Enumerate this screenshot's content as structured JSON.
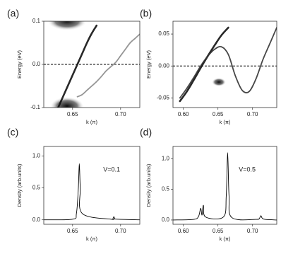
{
  "chart_data": [
    {
      "type": "line",
      "panel_label": "(a)",
      "xlabel": "k (π)",
      "ylabel": "Energy (eV)",
      "x": [
        0.62,
        0.625,
        0.63,
        0.635,
        0.64,
        0.645,
        0.65,
        0.655,
        0.66,
        0.665,
        0.67,
        0.675,
        0.68,
        0.685,
        0.69,
        0.695,
        0.7,
        0.705,
        0.71,
        0.715,
        0.72
      ],
      "series": [
        {
          "color": "#111111",
          "values": [
            null,
            null,
            null,
            -0.1,
            -0.075,
            -0.05,
            -0.025,
            0,
            0.025,
            0.05,
            0.072,
            0.09,
            null,
            null,
            null,
            null,
            null,
            null,
            null,
            null,
            null
          ]
        },
        {
          "color": "#8a8a8a",
          "values": [
            null,
            null,
            null,
            null,
            null,
            null,
            null,
            -0.075,
            -0.07,
            -0.06,
            -0.05,
            -0.04,
            -0.028,
            -0.015,
            -0.005,
            0.005,
            0.02,
            0.035,
            0.05,
            0.06,
            0.07
          ]
        }
      ],
      "reference_line": 0,
      "xlim": [
        0.62,
        0.72
      ],
      "xticks": [
        0.65,
        {
          "value": 0.7,
          "label": "0.70"
        }
      ],
      "ylim": [
        -0.1,
        0.1
      ],
      "yticks": [
        -0.1,
        {
          "value": 0,
          "label": "0.0"
        },
        0.1
      ]
    },
    {
      "type": "line",
      "panel_label": "(b)",
      "xlabel": "k (π)",
      "ylabel": "Energy (eV)",
      "x": [
        0.595,
        0.605,
        0.615,
        0.625,
        0.635,
        0.645,
        0.655,
        0.665,
        0.675,
        0.685,
        0.695,
        0.705,
        0.715,
        0.725,
        0.735
      ],
      "series": [
        {
          "color": "#111111",
          "values": [
            -0.055,
            -0.04,
            -0.022,
            -0.003,
            0.015,
            0.032,
            0.048,
            0.06,
            null,
            null,
            null,
            null,
            null,
            null,
            null
          ]
        },
        {
          "color": "#333333",
          "values": [
            -0.05,
            -0.035,
            -0.018,
            0,
            0.015,
            0.026,
            0.03,
            0.018,
            -0.015,
            -0.038,
            -0.04,
            -0.02,
            0.01,
            0.035,
            0.06
          ]
        }
      ],
      "reference_line": 0,
      "xlim": [
        0.585,
        0.735
      ],
      "xticks": [
        {
          "value": 0.6,
          "label": "0.60"
        },
        0.65,
        {
          "value": 0.7,
          "label": "0.70"
        }
      ],
      "ylim": [
        -0.065,
        0.07
      ],
      "yticks": [
        -0.05,
        {
          "value": 0,
          "label": "0.00"
        },
        0.05
      ]
    },
    {
      "type": "line",
      "panel_label": "(c)",
      "xlabel": "k (π)",
      "ylabel": "Density (arb.units)",
      "annotation": "V=0.1",
      "x": [
        0.62,
        0.65,
        0.654,
        0.656,
        0.657,
        0.658,
        0.66,
        0.69,
        0.692,
        0.693,
        0.694,
        0.696,
        0.72
      ],
      "series": [
        {
          "color": "#000000",
          "values": [
            0,
            0.01,
            0.1,
            0.5,
            0.88,
            0.5,
            0.1,
            0.01,
            0.02,
            0.05,
            0.02,
            0.01,
            0
          ]
        }
      ],
      "xlim": [
        0.62,
        0.72
      ],
      "xticks": [
        0.65,
        {
          "value": 0.7,
          "label": "0.70"
        }
      ],
      "ylim": [
        -0.07,
        1.15
      ],
      "yticks": [
        {
          "value": 0,
          "label": "0.0"
        },
        0.5,
        {
          "value": 1,
          "label": "1.0"
        }
      ]
    },
    {
      "type": "line",
      "panel_label": "(d)",
      "xlabel": "k (π)",
      "ylabel": "Density (arb.units)",
      "annotation": "V=0.5",
      "x": [
        0.585,
        0.615,
        0.622,
        0.625,
        0.627,
        0.629,
        0.632,
        0.658,
        0.662,
        0.664,
        0.666,
        0.67,
        0.705,
        0.71,
        0.712,
        0.714,
        0.718,
        0.735
      ],
      "series": [
        {
          "color": "#000000",
          "values": [
            0,
            0.01,
            0.06,
            0.19,
            0.08,
            0.24,
            0.05,
            0.05,
            0.4,
            1.1,
            0.4,
            0.04,
            0.01,
            0.03,
            0.07,
            0.03,
            0.01,
            0
          ]
        }
      ],
      "xlim": [
        0.585,
        0.735
      ],
      "xticks": [
        {
          "value": 0.6,
          "label": "0.60"
        },
        0.65,
        {
          "value": 0.7,
          "label": "0.70"
        }
      ],
      "ylim": [
        -0.07,
        1.2
      ],
      "yticks": [
        {
          "value": 0,
          "label": "0.0"
        },
        0.5,
        {
          "value": 1,
          "label": "1.0"
        }
      ]
    }
  ]
}
